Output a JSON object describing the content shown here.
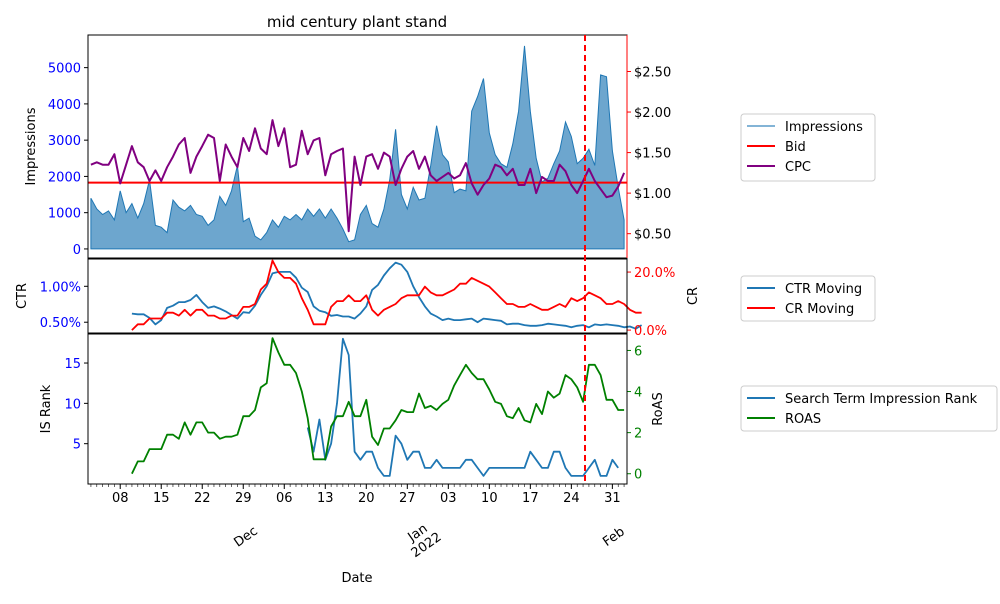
{
  "title": "mid century plant stand",
  "xlabel": "Date",
  "x_ticks": [
    "08",
    "15",
    "22",
    "29",
    "06",
    "13",
    "20",
    "27",
    "03",
    "10",
    "17",
    "24",
    "31"
  ],
  "month_labels": [
    "Dec",
    "Jan\n2022",
    "Feb"
  ],
  "colors": {
    "impressions": "#1f77b4",
    "bid": "#ff0000",
    "cpc": "#800080",
    "ctr": "#1f77b4",
    "cr": "#ff0000",
    "isrank": "#1f77b4",
    "roas": "#008000",
    "vline": "#ff0000"
  },
  "chart_data": [
    {
      "type": "area",
      "ylabel": "Impressions",
      "y2label": "",
      "yticks": [
        "0",
        "1000",
        "2000",
        "3000",
        "4000",
        "5000"
      ],
      "y2ticks": [
        "$0.50",
        "$1.00",
        "$1.50",
        "$2.00",
        "$2.50"
      ],
      "ylim": [
        -250,
        5900
      ],
      "y2lim": [
        0.2,
        2.95
      ],
      "start_date": "2021-12-03",
      "series": [
        {
          "name": "Impressions",
          "values": [
            1400,
            1100,
            950,
            1050,
            800,
            1600,
            1000,
            1250,
            850,
            1250,
            1900,
            650,
            600,
            450,
            1350,
            1150,
            1050,
            1200,
            950,
            900,
            650,
            800,
            1450,
            1200,
            1600,
            2300,
            750,
            850,
            350,
            250,
            450,
            800,
            600,
            900,
            800,
            950,
            800,
            1100,
            900,
            1100,
            850,
            1100,
            850,
            550,
            200,
            250,
            950,
            1200,
            700,
            600,
            1100,
            1900,
            3300,
            1500,
            1100,
            1700,
            1350,
            1400,
            2300,
            3400,
            2600,
            2400,
            1550,
            1650,
            1600,
            3800,
            4200,
            4700,
            3200,
            2600,
            2350,
            2250,
            2900,
            3800,
            5600,
            3800,
            2500,
            1850,
            1950,
            2350,
            2700,
            3500,
            3100,
            2350,
            2500,
            2750,
            2300,
            4800,
            4750,
            2700,
            1700,
            800
          ]
        },
        {
          "name": "Bid",
          "values": [
            1.13
          ]
        },
        {
          "name": "CPC",
          "values": [
            1.35,
            1.38,
            1.35,
            1.35,
            1.48,
            1.12,
            1.35,
            1.58,
            1.38,
            1.32,
            1.15,
            1.28,
            1.15,
            1.32,
            1.45,
            1.6,
            1.68,
            1.25,
            1.45,
            1.58,
            1.72,
            1.68,
            1.15,
            1.6,
            1.45,
            1.32,
            1.68,
            1.52,
            1.8,
            1.55,
            1.48,
            1.9,
            1.58,
            1.8,
            1.32,
            1.35,
            1.77,
            1.48,
            1.65,
            1.68,
            1.22,
            1.48,
            1.52,
            1.55,
            0.53,
            1.45,
            1.1,
            1.45,
            1.48,
            1.3,
            1.5,
            1.45,
            1.1,
            1.3,
            1.45,
            1.52,
            1.3,
            1.45,
            1.22,
            1.15,
            1.2,
            1.25,
            1.18,
            1.22,
            1.37,
            1.12,
            0.98,
            1.1,
            1.18,
            1.35,
            1.32,
            1.22,
            1.3,
            1.1,
            1.1,
            1.3,
            1.0,
            1.2,
            1.15,
            1.15,
            1.35,
            1.27,
            1.1,
            1.0,
            1.15,
            1.3,
            1.15,
            1.05,
            0.95,
            0.97,
            1.08,
            1.25
          ]
        }
      ]
    },
    {
      "type": "line",
      "ylabel": "CTR",
      "y2label": "CR",
      "yticks": [
        "0.50%",
        "1.00%"
      ],
      "y2ticks": [
        "0.0%",
        "20.0%"
      ],
      "ylim": [
        0.35,
        1.38
      ],
      "y2lim": [
        -0.01,
        0.245
      ],
      "start_offset": 7,
      "series": [
        {
          "name": "CTR Moving",
          "values": [
            0.62,
            0.61,
            0.61,
            0.56,
            0.47,
            0.53,
            0.7,
            0.73,
            0.78,
            0.78,
            0.81,
            0.88,
            0.78,
            0.7,
            0.72,
            0.69,
            0.65,
            0.6,
            0.55,
            0.64,
            0.63,
            0.73,
            0.88,
            1.0,
            1.18,
            1.2,
            1.2,
            1.2,
            1.12,
            0.98,
            0.92,
            0.72,
            0.66,
            0.64,
            0.59,
            0.6,
            0.58,
            0.58,
            0.55,
            0.62,
            0.72,
            0.95,
            1.02,
            1.15,
            1.25,
            1.33,
            1.3,
            1.2,
            1.0,
            0.85,
            0.72,
            0.62,
            0.58,
            0.53,
            0.55,
            0.53,
            0.53,
            0.54,
            0.55,
            0.5,
            0.55,
            0.54,
            0.53,
            0.52,
            0.47,
            0.48,
            0.48,
            0.46,
            0.45,
            0.45,
            0.46,
            0.48,
            0.47,
            0.46,
            0.45,
            0.43,
            0.45,
            0.46,
            0.43,
            0.47,
            0.46,
            0.47,
            0.46,
            0.45,
            0.43,
            0.44,
            0.41,
            0.46
          ]
        },
        {
          "name": "CR Moving",
          "values": [
            0.0,
            0.02,
            0.02,
            0.04,
            0.04,
            0.04,
            0.06,
            0.06,
            0.05,
            0.07,
            0.05,
            0.07,
            0.07,
            0.05,
            0.05,
            0.04,
            0.04,
            0.05,
            0.05,
            0.08,
            0.08,
            0.09,
            0.14,
            0.16,
            0.24,
            0.2,
            0.18,
            0.18,
            0.16,
            0.11,
            0.07,
            0.02,
            0.02,
            0.02,
            0.08,
            0.1,
            0.1,
            0.12,
            0.1,
            0.1,
            0.12,
            0.07,
            0.05,
            0.07,
            0.08,
            0.09,
            0.11,
            0.12,
            0.12,
            0.12,
            0.15,
            0.13,
            0.12,
            0.12,
            0.13,
            0.14,
            0.16,
            0.16,
            0.18,
            0.17,
            0.16,
            0.15,
            0.13,
            0.11,
            0.09,
            0.09,
            0.08,
            0.08,
            0.09,
            0.08,
            0.07,
            0.07,
            0.08,
            0.09,
            0.08,
            0.11,
            0.1,
            0.11,
            0.13,
            0.12,
            0.11,
            0.09,
            0.09,
            0.1,
            0.09,
            0.07,
            0.06,
            0.06
          ]
        }
      ]
    },
    {
      "type": "line",
      "ylabel": "IS Rank",
      "y2label": "RoAS",
      "yticks": [
        "5",
        "10",
        "15"
      ],
      "y2ticks": [
        "0",
        "2",
        "4",
        "6"
      ],
      "ylim": [
        0.0,
        18.6
      ],
      "y2lim": [
        -0.5,
        6.8
      ],
      "series": [
        {
          "name": "Search Term Impression Rank",
          "start_offset": 37,
          "values": [
            7,
            4,
            8,
            3,
            5,
            10,
            18,
            16,
            4,
            3,
            4,
            4,
            2,
            1,
            1,
            6,
            5,
            3,
            4,
            4,
            2,
            2,
            3,
            2,
            2,
            2,
            2,
            3,
            3,
            2,
            1,
            2,
            2,
            2,
            2,
            2,
            2,
            2,
            4,
            3,
            2,
            2,
            4,
            4,
            2,
            1,
            1,
            1,
            2,
            3,
            1,
            1,
            3,
            2
          ]
        },
        {
          "name": "ROAS",
          "start_offset": 7,
          "values": [
            0.0,
            0.6,
            0.6,
            1.2,
            1.2,
            1.2,
            1.9,
            1.9,
            1.7,
            2.5,
            1.9,
            2.5,
            2.5,
            2.0,
            2.0,
            1.7,
            1.8,
            1.8,
            1.9,
            2.8,
            2.8,
            3.1,
            4.2,
            4.4,
            6.6,
            5.9,
            5.3,
            5.3,
            4.9,
            4.0,
            2.7,
            0.7,
            0.7,
            0.7,
            2.3,
            2.8,
            2.8,
            3.5,
            2.8,
            2.8,
            3.6,
            1.8,
            1.4,
            2.2,
            2.2,
            2.6,
            3.1,
            3.0,
            3.0,
            3.9,
            3.2,
            3.3,
            3.1,
            3.4,
            3.6,
            4.3,
            4.8,
            5.3,
            4.9,
            4.6,
            4.6,
            4.1,
            3.5,
            3.4,
            2.8,
            2.7,
            3.2,
            2.6,
            2.5,
            3.4,
            2.9,
            4.0,
            3.7,
            3.9,
            4.8,
            4.6,
            4.2,
            3.5,
            5.3,
            5.3,
            4.8,
            3.6,
            3.6,
            3.1,
            3.1
          ]
        }
      ]
    }
  ],
  "vline_date": "2022-01-26",
  "legends": [
    {
      "items": [
        {
          "label": "Impressions",
          "color": "#5a9bc9",
          "w": 1.5
        },
        {
          "label": "Bid",
          "color": "#ff0000",
          "w": 2
        },
        {
          "label": "CPC",
          "color": "#800080",
          "w": 2
        }
      ]
    },
    {
      "items": [
        {
          "label": "CTR Moving",
          "color": "#1f77b4",
          "w": 2
        },
        {
          "label": "CR Moving",
          "color": "#ff0000",
          "w": 2
        }
      ]
    },
    {
      "items": [
        {
          "label": "Search Term Impression Rank",
          "color": "#1f77b4",
          "w": 2
        },
        {
          "label": "ROAS",
          "color": "#008000",
          "w": 2
        }
      ]
    }
  ]
}
